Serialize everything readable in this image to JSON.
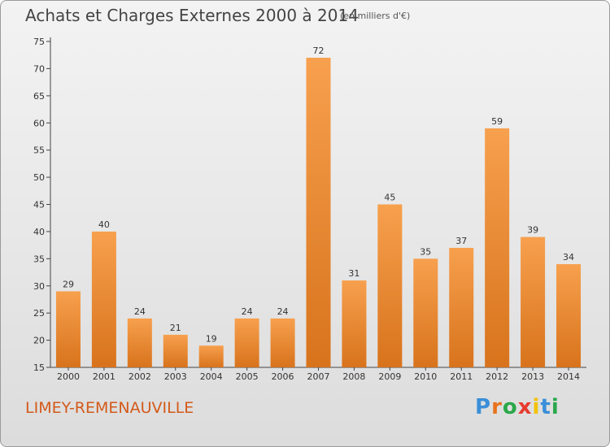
{
  "header": {
    "title": "Achats et Charges Externes 2000 à 2014",
    "subtitle": "(en milliers d'€)"
  },
  "footer": {
    "commune": "LIMEY-REMENAUVILLE",
    "logo": {
      "letters": [
        "P",
        "r",
        "o",
        "x",
        "i",
        "t",
        "i"
      ],
      "colors": [
        "#3a8fd8",
        "#e8731c",
        "#2aa84a",
        "#e63b2e",
        "#f2c200",
        "#3a8fd8",
        "#2aa84a"
      ]
    }
  },
  "colors": {
    "bar_light": "#f7a04e",
    "bar_dark": "#d8731c",
    "axis": "#444444",
    "grid": "#cfcfcf"
  },
  "chart_data": {
    "type": "bar",
    "title": "Achats et Charges Externes 2000 à 2014",
    "subtitle": "(en milliers d'€)",
    "categories": [
      "2000",
      "2001",
      "2002",
      "2003",
      "2004",
      "2005",
      "2006",
      "2007",
      "2008",
      "2009",
      "2010",
      "2011",
      "2012",
      "2013",
      "2014"
    ],
    "values": [
      29,
      40,
      24,
      21,
      19,
      24,
      24,
      72,
      31,
      45,
      35,
      37,
      59,
      39,
      34
    ],
    "ylim": [
      15,
      75
    ],
    "yticks": [
      15,
      20,
      25,
      30,
      35,
      40,
      45,
      50,
      55,
      60,
      65,
      70,
      75
    ],
    "grid": false,
    "data_labels": true
  }
}
